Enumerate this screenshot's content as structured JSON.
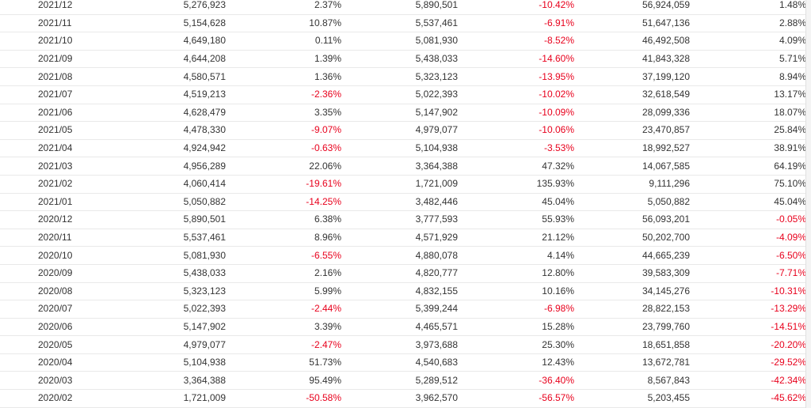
{
  "table": {
    "rows": [
      {
        "month": "2021/12",
        "v1": "5,276,923",
        "p1": "2.37%",
        "v2": "5,890,501",
        "p2": "-10.42%",
        "v3": "56,924,059",
        "p3": "1.48%"
      },
      {
        "month": "2021/11",
        "v1": "5,154,628",
        "p1": "10.87%",
        "v2": "5,537,461",
        "p2": "-6.91%",
        "v3": "51,647,136",
        "p3": "2.88%"
      },
      {
        "month": "2021/10",
        "v1": "4,649,180",
        "p1": "0.11%",
        "v2": "5,081,930",
        "p2": "-8.52%",
        "v3": "46,492,508",
        "p3": "4.09%"
      },
      {
        "month": "2021/09",
        "v1": "4,644,208",
        "p1": "1.39%",
        "v2": "5,438,033",
        "p2": "-14.60%",
        "v3": "41,843,328",
        "p3": "5.71%"
      },
      {
        "month": "2021/08",
        "v1": "4,580,571",
        "p1": "1.36%",
        "v2": "5,323,123",
        "p2": "-13.95%",
        "v3": "37,199,120",
        "p3": "8.94%"
      },
      {
        "month": "2021/07",
        "v1": "4,519,213",
        "p1": "-2.36%",
        "v2": "5,022,393",
        "p2": "-10.02%",
        "v3": "32,618,549",
        "p3": "13.17%"
      },
      {
        "month": "2021/06",
        "v1": "4,628,479",
        "p1": "3.35%",
        "v2": "5,147,902",
        "p2": "-10.09%",
        "v3": "28,099,336",
        "p3": "18.07%"
      },
      {
        "month": "2021/05",
        "v1": "4,478,330",
        "p1": "-9.07%",
        "v2": "4,979,077",
        "p2": "-10.06%",
        "v3": "23,470,857",
        "p3": "25.84%"
      },
      {
        "month": "2021/04",
        "v1": "4,924,942",
        "p1": "-0.63%",
        "v2": "5,104,938",
        "p2": "-3.53%",
        "v3": "18,992,527",
        "p3": "38.91%"
      },
      {
        "month": "2021/03",
        "v1": "4,956,289",
        "p1": "22.06%",
        "v2": "3,364,388",
        "p2": "47.32%",
        "v3": "14,067,585",
        "p3": "64.19%"
      },
      {
        "month": "2021/02",
        "v1": "4,060,414",
        "p1": "-19.61%",
        "v2": "1,721,009",
        "p2": "135.93%",
        "v3": "9,111,296",
        "p3": "75.10%"
      },
      {
        "month": "2021/01",
        "v1": "5,050,882",
        "p1": "-14.25%",
        "v2": "3,482,446",
        "p2": "45.04%",
        "v3": "5,050,882",
        "p3": "45.04%"
      },
      {
        "month": "2020/12",
        "v1": "5,890,501",
        "p1": "6.38%",
        "v2": "3,777,593",
        "p2": "55.93%",
        "v3": "56,093,201",
        "p3": "-0.05%"
      },
      {
        "month": "2020/11",
        "v1": "5,537,461",
        "p1": "8.96%",
        "v2": "4,571,929",
        "p2": "21.12%",
        "v3": "50,202,700",
        "p3": "-4.09%"
      },
      {
        "month": "2020/10",
        "v1": "5,081,930",
        "p1": "-6.55%",
        "v2": "4,880,078",
        "p2": "4.14%",
        "v3": "44,665,239",
        "p3": "-6.50%"
      },
      {
        "month": "2020/09",
        "v1": "5,438,033",
        "p1": "2.16%",
        "v2": "4,820,777",
        "p2": "12.80%",
        "v3": "39,583,309",
        "p3": "-7.71%"
      },
      {
        "month": "2020/08",
        "v1": "5,323,123",
        "p1": "5.99%",
        "v2": "4,832,155",
        "p2": "10.16%",
        "v3": "34,145,276",
        "p3": "-10.31%"
      },
      {
        "month": "2020/07",
        "v1": "5,022,393",
        "p1": "-2.44%",
        "v2": "5,399,244",
        "p2": "-6.98%",
        "v3": "28,822,153",
        "p3": "-13.29%"
      },
      {
        "month": "2020/06",
        "v1": "5,147,902",
        "p1": "3.39%",
        "v2": "4,465,571",
        "p2": "15.28%",
        "v3": "23,799,760",
        "p3": "-14.51%"
      },
      {
        "month": "2020/05",
        "v1": "4,979,077",
        "p1": "-2.47%",
        "v2": "3,973,688",
        "p2": "25.30%",
        "v3": "18,651,858",
        "p3": "-20.20%"
      },
      {
        "month": "2020/04",
        "v1": "5,104,938",
        "p1": "51.73%",
        "v2": "4,540,683",
        "p2": "12.43%",
        "v3": "13,672,781",
        "p3": "-29.52%"
      },
      {
        "month": "2020/03",
        "v1": "3,364,388",
        "p1": "95.49%",
        "v2": "5,289,512",
        "p2": "-36.40%",
        "v3": "8,567,843",
        "p3": "-42.34%"
      },
      {
        "month": "2020/02",
        "v1": "1,721,009",
        "p1": "-50.58%",
        "v2": "3,962,570",
        "p2": "-56.57%",
        "v3": "5,203,455",
        "p3": "-45.62%"
      }
    ]
  },
  "colors": {
    "negative": "#e8001c",
    "text": "#333333",
    "row_border": "#e9e9e9"
  }
}
